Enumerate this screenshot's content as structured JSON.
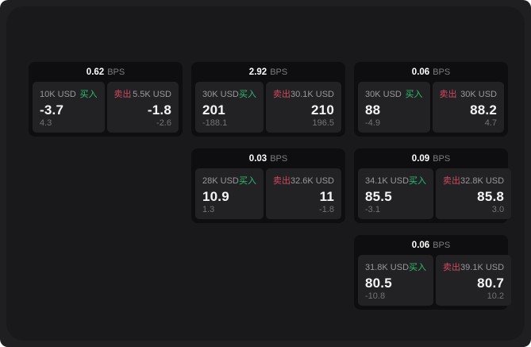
{
  "labels": {
    "bps": "BPS",
    "buy": "买入",
    "sell": "卖出"
  },
  "colors": {
    "buy": "#2ebd70",
    "sell": "#cf4a5f",
    "bg_outer": "#1f1f21",
    "bg_window": "#19191b",
    "bg_card": "#0e0e10",
    "bg_tile": "#222225"
  },
  "cards": [
    {
      "bps": "0.62",
      "row": 1,
      "col": 1,
      "buy": {
        "amount": "10K USD",
        "value": "-3.7",
        "sub": "4.3"
      },
      "sell": {
        "amount": "5.5K USD",
        "value": "-1.8",
        "sub": "-2.6"
      }
    },
    {
      "bps": "2.92",
      "row": 1,
      "col": 2,
      "buy": {
        "amount": "30K USD",
        "value": "201",
        "sub": "-188.1"
      },
      "sell": {
        "amount": "30.1K USD",
        "value": "210",
        "sub": "196.5"
      }
    },
    {
      "bps": "0.06",
      "row": 1,
      "col": 3,
      "buy": {
        "amount": "30K USD",
        "value": "88",
        "sub": "-4.9"
      },
      "sell": {
        "amount": "30K USD",
        "value": "88.2",
        "sub": "4.7"
      }
    },
    {
      "bps": "0.03",
      "row": 2,
      "col": 2,
      "buy": {
        "amount": "28K USD",
        "value": "10.9",
        "sub": "1.3"
      },
      "sell": {
        "amount": "32.6K USD",
        "value": "11",
        "sub": "-1.8"
      }
    },
    {
      "bps": "0.09",
      "row": 2,
      "col": 3,
      "buy": {
        "amount": "34.1K USD",
        "value": "85.5",
        "sub": "-3.1"
      },
      "sell": {
        "amount": "32.8K USD",
        "value": "85.8",
        "sub": "3.0"
      }
    },
    {
      "bps": "0.06",
      "row": 3,
      "col": 3,
      "buy": {
        "amount": "31.8K USD",
        "value": "80.5",
        "sub": "-10.8"
      },
      "sell": {
        "amount": "39.1K USD",
        "value": "80.7",
        "sub": "10.2"
      }
    }
  ]
}
